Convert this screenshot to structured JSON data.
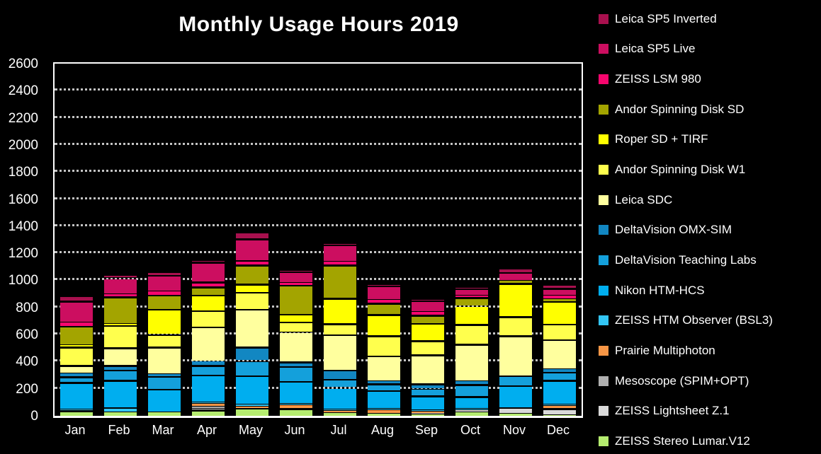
{
  "title": "Monthly Usage Hours 2019",
  "chart_data": {
    "type": "bar",
    "stacked": true,
    "title": "Monthly Usage Hours 2019",
    "xlabel": "",
    "ylabel": "",
    "ylim": [
      0,
      2600
    ],
    "ytick_step": 200,
    "grid": "horizontal-dotted",
    "legend_position": "right",
    "background_color": "#000000",
    "frame_color": "#ffffff",
    "gridline_color": "#c4c4c4",
    "text_color": "#ffffff",
    "categories": [
      "Jan",
      "Feb",
      "Mar",
      "Apr",
      "May",
      "Jun",
      "Jul",
      "Aug",
      "Sep",
      "Oct",
      "Nov",
      "Dec"
    ],
    "stack_note": "series listed top-of-stack first (legend order); last series is bottom of stack",
    "series": [
      {
        "name": "Leica SP5 Inverted",
        "color": "#A8104E",
        "values": [
          30,
          17,
          20,
          12,
          50,
          8,
          10,
          7,
          8,
          10,
          35,
          20
        ]
      },
      {
        "name": "Leica SP5 Live",
        "color": "#CC0E60",
        "values": [
          155,
          118,
          115,
          148,
          160,
          78,
          120,
          100,
          80,
          45,
          60,
          50
        ]
      },
      {
        "name": "ZEISS LSM 980",
        "color": "#F7066E",
        "values": [
          30,
          25,
          30,
          35,
          35,
          22,
          28,
          28,
          26,
          20,
          0,
          30
        ]
      },
      {
        "name": "Andor Spinning Disk SD",
        "color": "#A3A400",
        "values": [
          135,
          195,
          105,
          60,
          140,
          215,
          247,
          85,
          60,
          60,
          20,
          17
        ]
      },
      {
        "name": "Roper SD + TIRF",
        "color": "#FFFF00",
        "values": [
          20,
          15,
          185,
          115,
          60,
          55,
          188,
          155,
          129,
          138,
          245,
          167
        ]
      },
      {
        "name": "Andor Spinning Disk W1",
        "color": "#FFFF4D",
        "values": [
          135,
          165,
          95,
          120,
          125,
          75,
          81,
          150,
          103,
          146,
          142,
          115
        ]
      },
      {
        "name": "Leica SDC",
        "color": "#FFFF9E",
        "values": [
          55,
          130,
          195,
          255,
          280,
          220,
          260,
          185,
          215,
          271,
          293,
          215
        ]
      },
      {
        "name": "DeltaVision OMX-SIM",
        "color": "#1287C2",
        "values": [
          30,
          35,
          20,
          30,
          100,
          35,
          69,
          20,
          35,
          25,
          0,
          25
        ]
      },
      {
        "name": "DeltaVision Teaching Labs",
        "color": "#14A0DB",
        "values": [
          40,
          75,
          95,
          70,
          110,
          110,
          58,
          50,
          55,
          90,
          75,
          62
        ]
      },
      {
        "name": "Nikon HTM-HCS",
        "color": "#00AEEF",
        "values": [
          200,
          200,
          170,
          200,
          210,
          165,
          160,
          135,
          100,
          90,
          160,
          175
        ]
      },
      {
        "name": "ZEISS HTM Observer (BSL3)",
        "color": "#33C6F5",
        "values": [
          10,
          35,
          0,
          10,
          15,
          8,
          14,
          10,
          10,
          10,
          0,
          12
        ]
      },
      {
        "name": "Prairie Multiphoton",
        "color": "#F79646",
        "values": [
          0,
          0,
          0,
          20,
          15,
          29,
          14,
          25,
          18,
          0,
          0,
          20
        ]
      },
      {
        "name": "Mesoscope (SPIM+OPT)",
        "color": "#B0B0B0",
        "values": [
          0,
          0,
          0,
          15,
          0,
          0,
          0,
          0,
          7,
          0,
          0,
          0
        ]
      },
      {
        "name": "ZEISS Lightsheet Z.1",
        "color": "#D9D9D9",
        "values": [
          0,
          0,
          0,
          15,
          0,
          0,
          0,
          0,
          0,
          15,
          45,
          45
        ]
      },
      {
        "name": "ZEISS Stereo Lumar.V12",
        "color": "#B5EC6F",
        "values": [
          40,
          30,
          30,
          45,
          60,
          55,
          26,
          20,
          14,
          30,
          20,
          12
        ]
      }
    ],
    "monthly_totals": [
      880,
      1040,
      1060,
      1150,
      1360,
      1075,
      1275,
      970,
      860,
      950,
      1095,
      965
    ]
  }
}
